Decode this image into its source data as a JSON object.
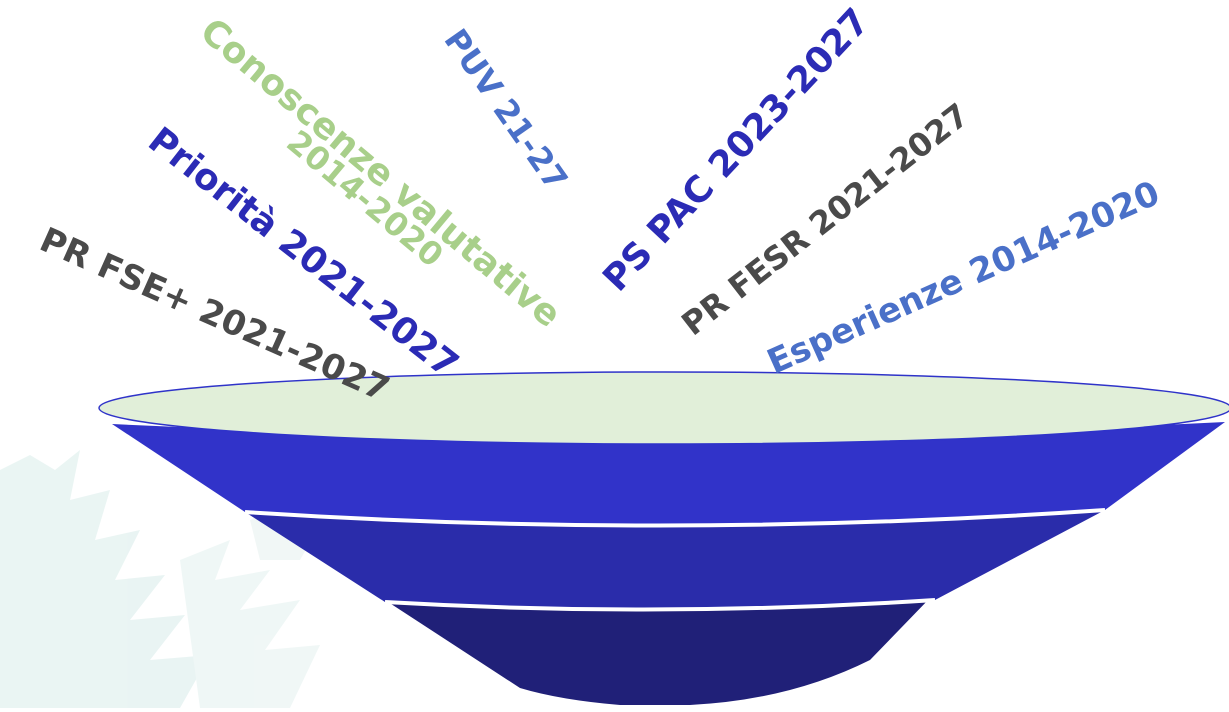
{
  "labels": [
    {
      "id": "pr-fse",
      "text": "PR FSE+ 2021-2027",
      "color": "#4a4a4a"
    },
    {
      "id": "priorita",
      "text": "Priorità 2021-2027",
      "color": "#2b2bb5"
    },
    {
      "id": "conoscenze-1",
      "text": "Conoscenze valutative",
      "color": "#a8cf8a"
    },
    {
      "id": "conoscenze-2",
      "text": "2014-2020",
      "color": "#a8cf8a"
    },
    {
      "id": "puv",
      "text": "PUV 21-27",
      "color": "#4a70c8"
    },
    {
      "id": "ps-pac",
      "text": "PS PAC 2023-2027",
      "color": "#2b2bb5"
    },
    {
      "id": "pr-fesr",
      "text": "PR FESR 2021-2027",
      "color": "#4a4a4a"
    },
    {
      "id": "esperienze",
      "text": "Esperienze 2014-2020",
      "color": "#4a70c8"
    }
  ],
  "colors": {
    "bowl_rim_fill": "#e1efd9",
    "bowl_rim_stroke": "#2f33c9",
    "bowl_band_1": "#3133c9",
    "bowl_band_2": "#2a2caa",
    "bowl_band_3": "#202078",
    "background_decoration": "#d8ecea"
  }
}
